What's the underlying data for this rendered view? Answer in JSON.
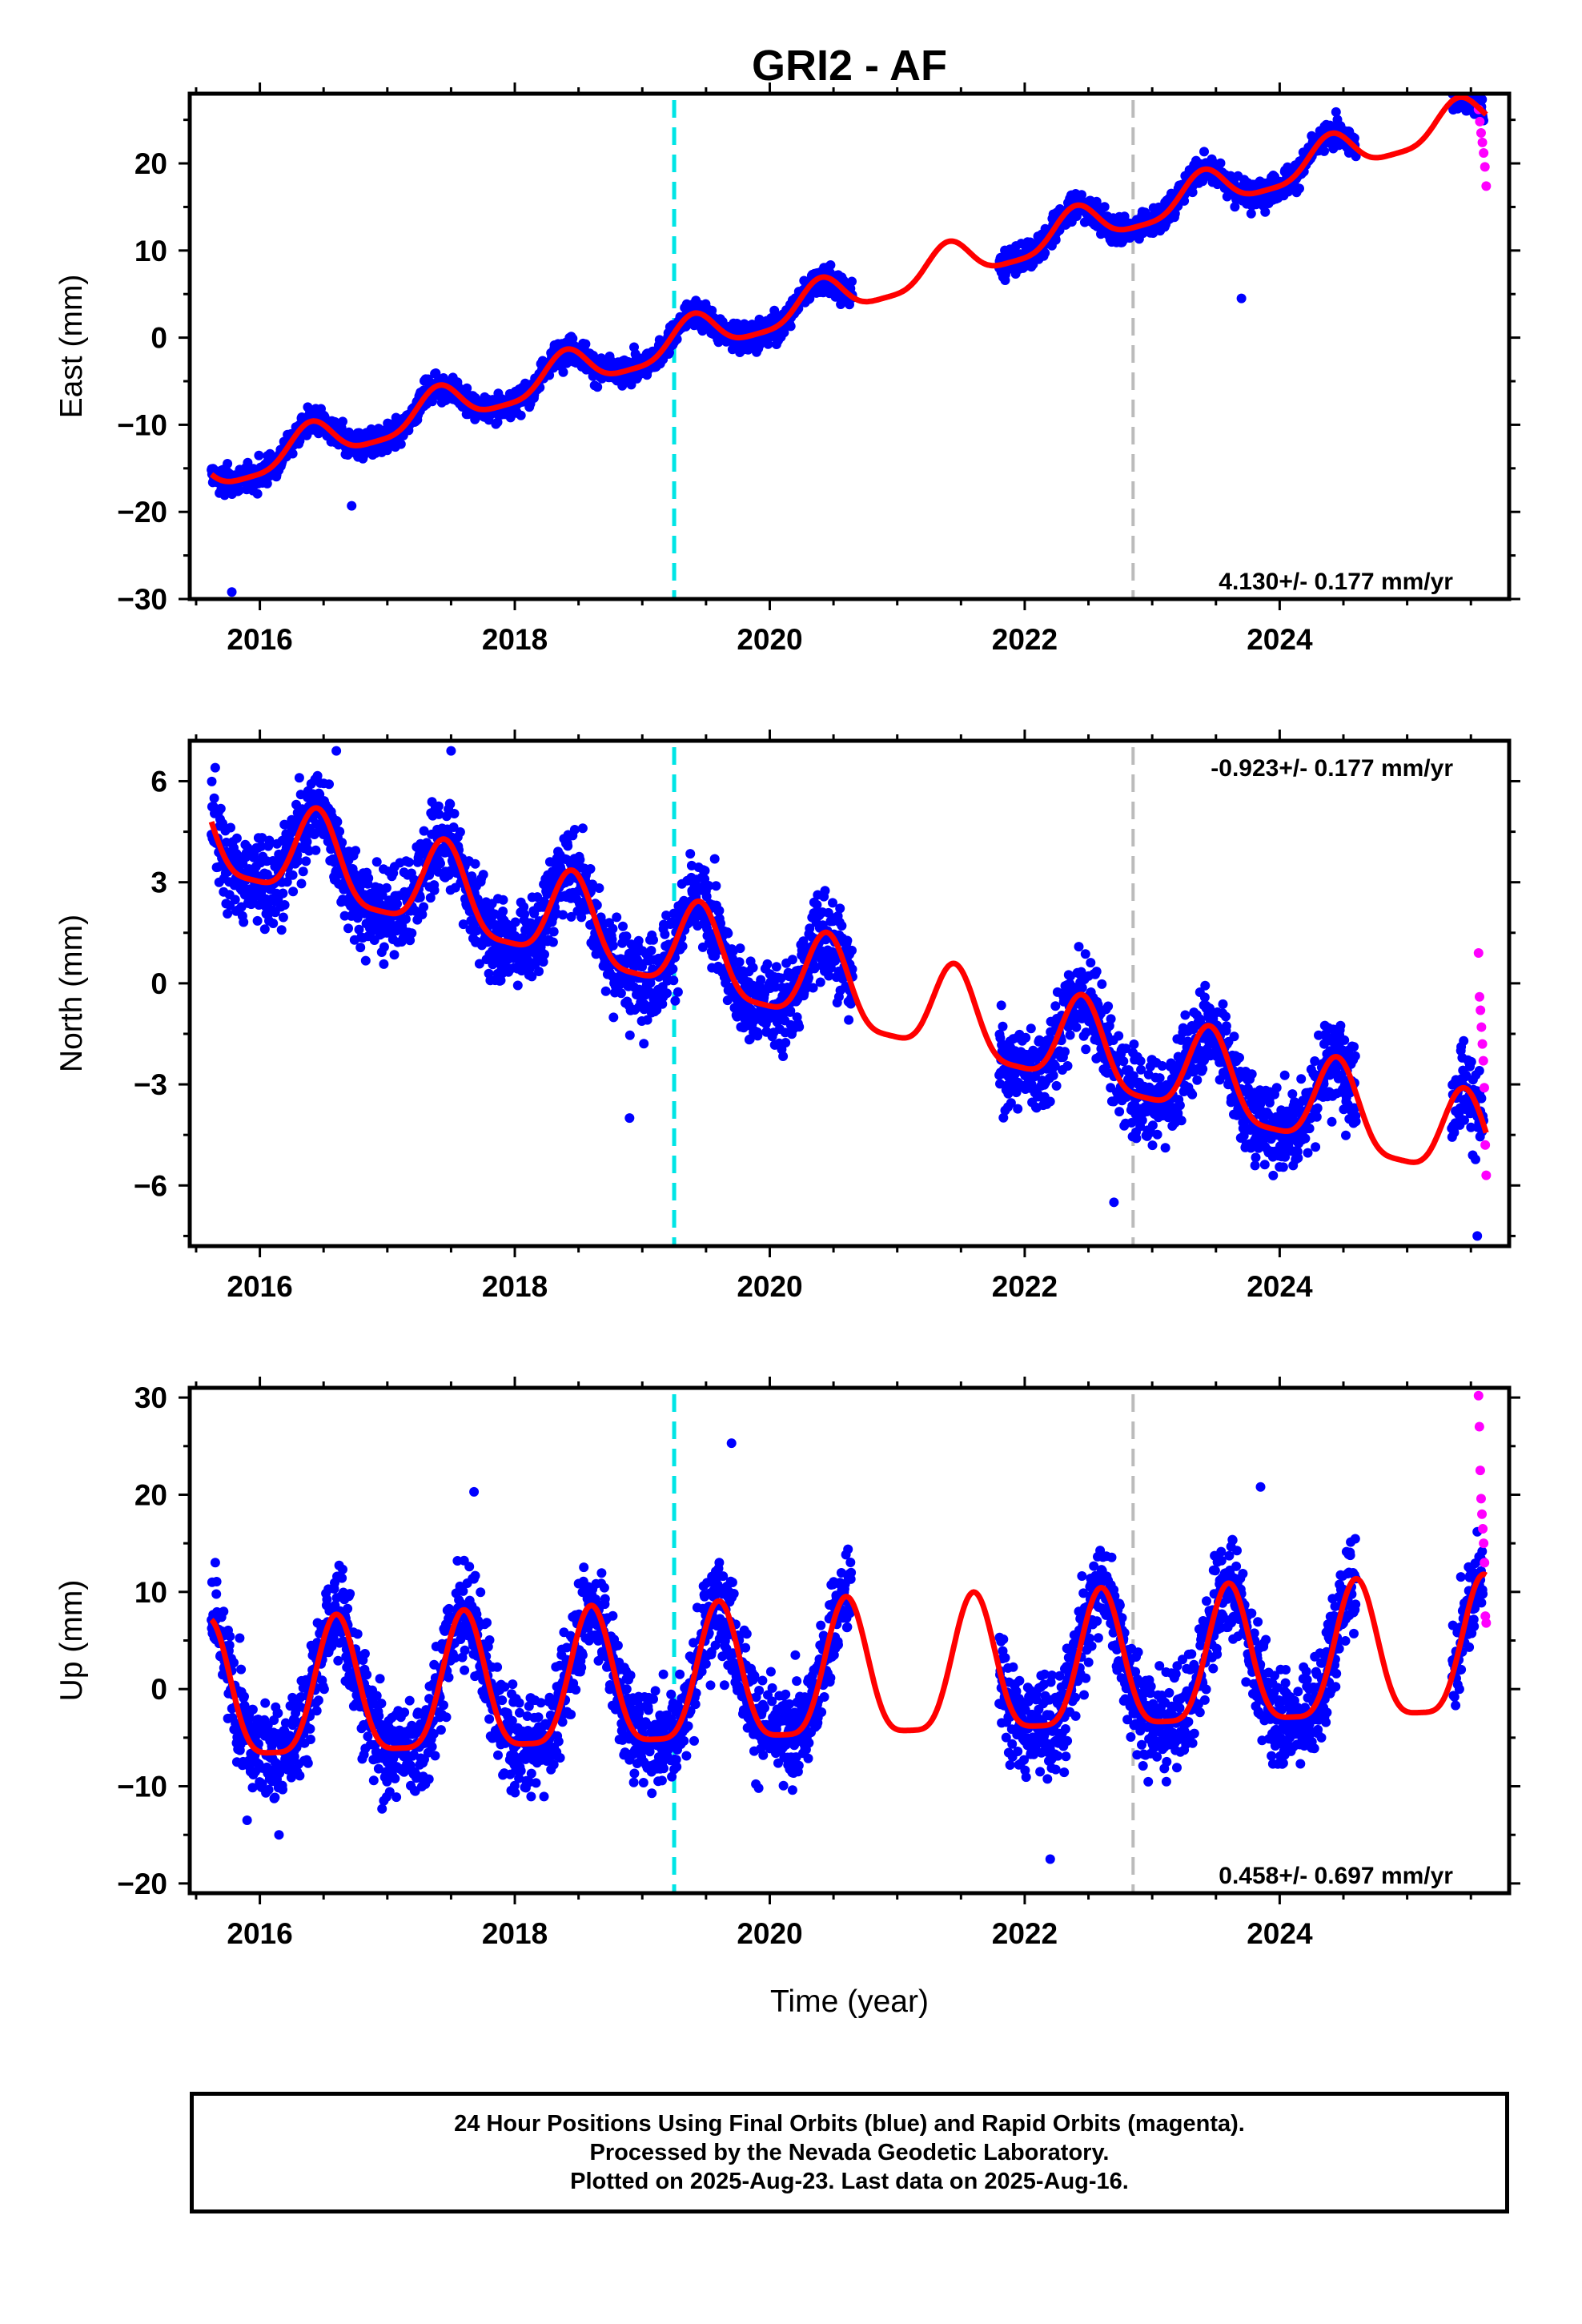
{
  "title": "GRI2 - AF",
  "x_axis_title": "Time (year)",
  "caption": {
    "line1": "24 Hour Positions Using Final Orbits (blue) and Rapid Orbits (magenta).",
    "line2": "Processed by the Nevada Geodetic Laboratory.",
    "line3": "Plotted on 2025-Aug-23. Last data on 2025-Aug-16."
  },
  "colors": {
    "final_points": "#0000ff",
    "rapid_points": "#ff00ff",
    "model_line": "#ff0000",
    "equipment_change": "#00e5e5",
    "other_event": "#bbbbbb"
  },
  "chart_data": [
    {
      "type": "scatter",
      "panel": "east",
      "ylabel": "East (mm)",
      "xlim": [
        2015.45,
        2025.8
      ],
      "ylim": [
        -30,
        28
      ],
      "xticks": [
        2016,
        2018,
        2020,
        2022,
        2024
      ],
      "yticks": [
        -30,
        -20,
        -10,
        0,
        10,
        20
      ],
      "rate_label": "4.130+/- 0.177 mm/yr",
      "event_lines": [
        {
          "x": 2019.25,
          "kind": "equipment_change",
          "style": "dashed"
        },
        {
          "x": 2022.85,
          "kind": "other_event",
          "style": "dashed"
        }
      ],
      "final_segments": [
        [
          2015.62,
          2020.65
        ],
        [
          2021.8,
          2024.6
        ],
        [
          2025.35,
          2025.6
        ]
      ],
      "rapid_range": [
        2025.56,
        2025.62
      ],
      "rapid_values": [
        26.2,
        24.8,
        23.5,
        22.4,
        21.2,
        19.6,
        17.4
      ],
      "model": {
        "rate": 4.13,
        "value_at_2020": 2.5,
        "annual_amp": 2.2,
        "annual_phase_peak": 0.4
      },
      "outliers": [
        [
          2015.78,
          -29.2
        ],
        [
          2016.72,
          -19.3
        ],
        [
          2023.7,
          4.5
        ]
      ]
    },
    {
      "type": "scatter",
      "panel": "north",
      "ylabel": "North (mm)",
      "xlim": [
        2015.45,
        2025.8
      ],
      "ylim": [
        -7.8,
        7.2
      ],
      "xticks": [
        2016,
        2018,
        2020,
        2022,
        2024
      ],
      "yticks": [
        -6,
        -3,
        0,
        3,
        6
      ],
      "rate_label": "-0.923+/- 0.177 mm/yr",
      "event_lines": [
        {
          "x": 2019.25,
          "kind": "equipment_change",
          "style": "dashed"
        },
        {
          "x": 2022.85,
          "kind": "other_event",
          "style": "dashed"
        }
      ],
      "final_segments": [
        [
          2015.62,
          2020.65
        ],
        [
          2021.8,
          2024.6
        ],
        [
          2025.35,
          2025.6
        ]
      ],
      "rapid_range": [
        2025.56,
        2025.62
      ],
      "rapid_values": [
        0.9,
        -0.4,
        -0.8,
        -1.3,
        -1.8,
        -2.3,
        -3.1,
        -4.8,
        -5.7
      ],
      "model": {
        "rate": -0.923,
        "value_at_2020": 0.3,
        "annual_amp": 1.3,
        "annual_phase_peak": 0.45
      },
      "outliers": [
        [
          2015.65,
          6.4
        ],
        [
          2016.6,
          6.9
        ],
        [
          2017.5,
          6.9
        ],
        [
          2018.9,
          -4.0
        ],
        [
          2022.7,
          -6.5
        ],
        [
          2025.55,
          -7.5
        ]
      ]
    },
    {
      "type": "scatter",
      "panel": "up",
      "ylabel": "Up (mm)",
      "xlim": [
        2015.45,
        2025.8
      ],
      "ylim": [
        -21,
        31
      ],
      "xticks": [
        2016,
        2018,
        2020,
        2022,
        2024
      ],
      "yticks": [
        -20,
        -10,
        0,
        10,
        20,
        30
      ],
      "rate_label": "0.458+/- 0.697 mm/yr",
      "event_lines": [
        {
          "x": 2019.25,
          "kind": "equipment_change",
          "style": "dashed"
        },
        {
          "x": 2022.85,
          "kind": "other_event",
          "style": "dashed"
        }
      ],
      "final_segments": [
        [
          2015.62,
          2020.65
        ],
        [
          2021.8,
          2024.6
        ],
        [
          2025.35,
          2025.6
        ]
      ],
      "rapid_range": [
        2025.56,
        2025.62
      ],
      "rapid_values": [
        30.2,
        27.0,
        22.5,
        19.6,
        18.0,
        16.5,
        15.0,
        13.0,
        7.5,
        6.8
      ],
      "model": {
        "rate": 0.458,
        "value_at_2020": 0.5,
        "annual_amp": 7.0,
        "annual_phase_peak": 0.6
      },
      "outliers": [
        [
          2019.7,
          25.3
        ],
        [
          2023.85,
          20.8
        ],
        [
          2017.68,
          20.3
        ],
        [
          2015.9,
          -13.5
        ],
        [
          2016.15,
          -15.0
        ],
        [
          2022.2,
          -17.5
        ]
      ]
    }
  ]
}
